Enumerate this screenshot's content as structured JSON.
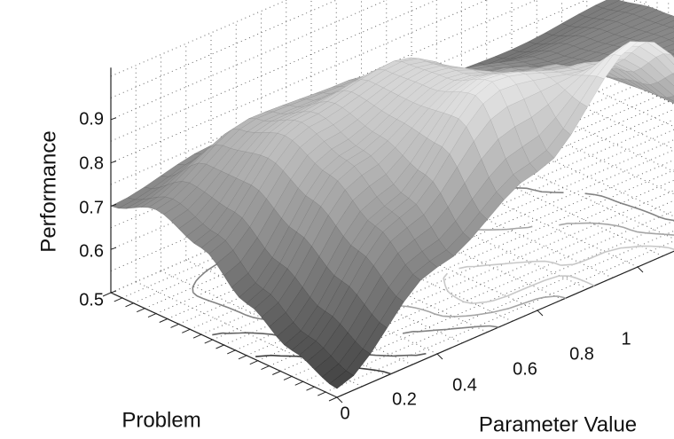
{
  "chart_data": {
    "type": "surface",
    "title": "",
    "xlabel": "Parameter Value",
    "ylabel": "Problem",
    "zlabel": "Performance",
    "xlim": [
      0,
      1
    ],
    "zlim": [
      0.5,
      1.0
    ],
    "x_ticks": [
      "0",
      "0.2",
      "0.4",
      "0.6",
      "0.8",
      "1"
    ],
    "z_ticks": [
      "0.5",
      "0.6",
      "0.7",
      "0.8",
      "0.9"
    ],
    "y_tick_count": 20,
    "grid": true,
    "contour_projection": true,
    "colormap": "gray",
    "colors": {
      "surface_dark": "#3c3c3c",
      "surface_light": "#f0f0f0",
      "contour": "#888888"
    },
    "x": [
      0,
      0.2,
      0.4,
      0.6,
      0.8,
      1.0
    ],
    "y": [
      0,
      0.2,
      0.4,
      0.6,
      0.8,
      1.0
    ],
    "z": [
      [
        0.7,
        0.74,
        0.71,
        0.67,
        0.66,
        0.68
      ],
      [
        0.74,
        0.85,
        0.84,
        0.75,
        0.7,
        0.7
      ],
      [
        0.7,
        0.89,
        0.93,
        0.8,
        0.72,
        0.71
      ],
      [
        0.62,
        0.85,
        0.94,
        0.86,
        0.74,
        0.71
      ],
      [
        0.56,
        0.78,
        0.98,
        0.92,
        0.73,
        0.69
      ],
      [
        0.52,
        0.7,
        0.82,
        1.02,
        0.78,
        0.67
      ]
    ]
  }
}
